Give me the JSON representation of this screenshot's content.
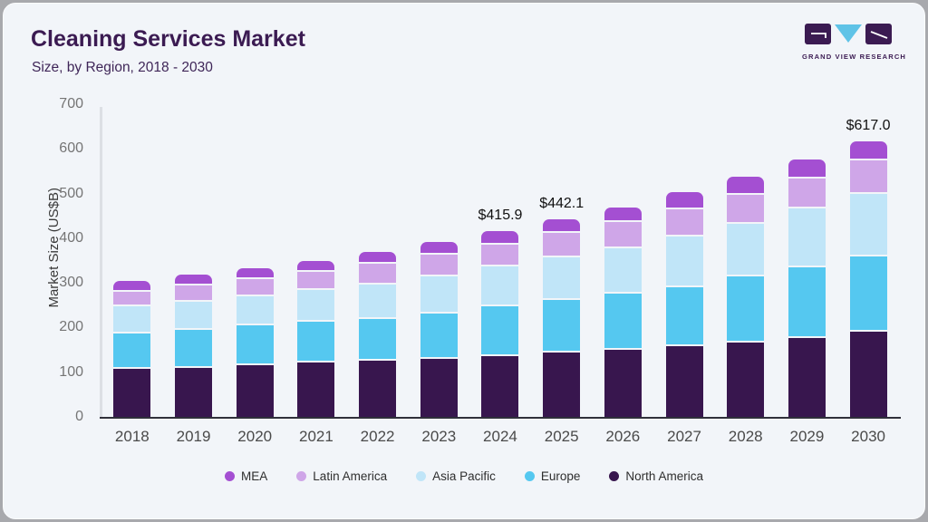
{
  "header": {
    "title": "Cleaning Services Market",
    "subtitle": "Size, by Region, 2018 - 2030"
  },
  "logo": {
    "text": "GRAND VIEW RESEARCH"
  },
  "colors": {
    "card_background": "#f2f5f9",
    "page_background": "#a8a9ad",
    "title_text": "#3b1b52",
    "x_axis_line": "#30303a",
    "y_axis_line": "#dcdfe4",
    "y_tick_text": "#757575",
    "x_tick_text": "#4a4a4a",
    "annotation_text": "#101010",
    "logo_purple": "#3b1b52",
    "logo_blue": "#5fc3e7"
  },
  "chart_data": {
    "type": "bar",
    "stacked": true,
    "title": "Cleaning Services Market Size, by Region, 2018 - 2030",
    "xlabel": "",
    "ylabel": "Market Size (US$B)",
    "ylim": [
      0,
      700
    ],
    "yticks": [
      0,
      100,
      200,
      300,
      400,
      500,
      600,
      700
    ],
    "grid": false,
    "legend_position": "bottom",
    "categories": [
      "2018",
      "2019",
      "2020",
      "2021",
      "2022",
      "2023",
      "2024",
      "2025",
      "2026",
      "2027",
      "2028",
      "2029",
      "2030"
    ],
    "series": [
      {
        "name": "North America",
        "color": "#38164e",
        "values": [
          107,
          110,
          116,
          121,
          125,
          130,
          135.5,
          144.3,
          149.5,
          159.3,
          167.2,
          176.1,
          191.0
        ]
      },
      {
        "name": "Europe",
        "color": "#55c8f0",
        "values": [
          80,
          84,
          89,
          92,
          95,
          101,
          111.5,
          117.8,
          126.3,
          131.0,
          147.3,
          158.4,
          169.0
        ]
      },
      {
        "name": "Asia Pacific",
        "color": "#c0e5f8",
        "values": [
          60,
          64,
          64,
          71,
          77,
          84,
          90.3,
          95.7,
          102.0,
          113.9,
          118.6,
          131.8,
          140.0
        ]
      },
      {
        "name": "Latin America",
        "color": "#cfa6e8",
        "values": [
          34,
          37,
          40,
          40,
          46,
          49,
          48.6,
          54.8,
          57.8,
          60.4,
          64.7,
          68.2,
          74.0
        ]
      },
      {
        "name": "MEA",
        "color": "#a44fd2",
        "values": [
          24,
          23,
          24,
          26,
          27,
          28,
          30.0,
          29.5,
          34.0,
          37.9,
          39.7,
          40.9,
          43.0
        ]
      }
    ],
    "totals": [
      305,
      318,
      333,
      350,
      370,
      392,
      415.9,
      442.1,
      469.6,
      502.5,
      537.5,
      575.4,
      617.0
    ],
    "annotations": [
      {
        "category": "2024",
        "text": "$415.9"
      },
      {
        "category": "2025",
        "text": "$442.1"
      },
      {
        "category": "2030",
        "text": "$617.0"
      }
    ],
    "legend_order": [
      "MEA",
      "Latin America",
      "Asia Pacific",
      "Europe",
      "North America"
    ]
  }
}
